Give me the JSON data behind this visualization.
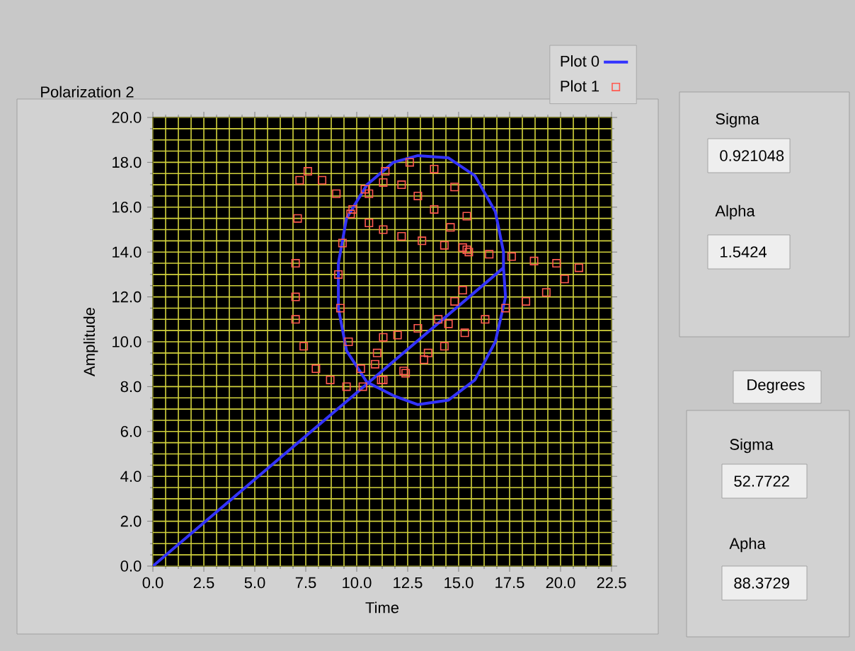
{
  "chart_data": {
    "type": "scatter",
    "title": "Polarization 2",
    "xlabel": "Time",
    "ylabel": "Amplitude",
    "xlim": [
      0,
      22.5
    ],
    "ylim": [
      0,
      20
    ],
    "xticks": [
      {
        "value": 0,
        "label": "0.0"
      },
      {
        "value": 2.5,
        "label": "2.5"
      },
      {
        "value": 5,
        "label": "5.0"
      },
      {
        "value": 7.5,
        "label": "7.5"
      },
      {
        "value": 10,
        "label": "10.0"
      },
      {
        "value": 12.5,
        "label": "12.5"
      },
      {
        "value": 15,
        "label": "15.0"
      },
      {
        "value": 17.5,
        "label": "17.5"
      },
      {
        "value": 20,
        "label": "20.0"
      },
      {
        "value": 22.5,
        "label": "22.5"
      },
      {
        "value": 0.625,
        "label": null
      },
      {
        "value": 1.25,
        "label": null
      },
      {
        "value": 1.875,
        "label": null
      },
      {
        "value": 3.125,
        "label": null
      },
      {
        "value": 3.75,
        "label": null
      },
      {
        "value": 4.375,
        "label": null
      },
      {
        "value": 5.625,
        "label": null
      },
      {
        "value": 6.25,
        "label": null
      },
      {
        "value": 6.875,
        "label": null
      },
      {
        "value": 8.125,
        "label": null
      },
      {
        "value": 8.75,
        "label": null
      },
      {
        "value": 9.375,
        "label": null
      },
      {
        "value": 10.625,
        "label": null
      },
      {
        "value": 11.25,
        "label": null
      },
      {
        "value": 11.875,
        "label": null
      },
      {
        "value": 13.125,
        "label": null
      },
      {
        "value": 13.75,
        "label": null
      },
      {
        "value": 14.375,
        "label": null
      },
      {
        "value": 15.625,
        "label": null
      },
      {
        "value": 16.25,
        "label": null
      },
      {
        "value": 16.875,
        "label": null
      },
      {
        "value": 18.125,
        "label": null
      },
      {
        "value": 18.75,
        "label": null
      },
      {
        "value": 19.375,
        "label": null
      },
      {
        "value": 20.625,
        "label": null
      },
      {
        "value": 21.25,
        "label": null
      },
      {
        "value": 21.875,
        "label": null
      }
    ],
    "yticks": [
      {
        "value": 0,
        "label": "0.0"
      },
      {
        "value": 2,
        "label": "2.0"
      },
      {
        "value": 4,
        "label": "4.0"
      },
      {
        "value": 6,
        "label": "6.0"
      },
      {
        "value": 8,
        "label": "8.0"
      },
      {
        "value": 10,
        "label": "10.0"
      },
      {
        "value": 12,
        "label": "12.0"
      },
      {
        "value": 14,
        "label": "14.0"
      },
      {
        "value": 16,
        "label": "16.0"
      },
      {
        "value": 18,
        "label": "18.0"
      },
      {
        "value": 20,
        "label": "20.0"
      },
      {
        "value": 0.5,
        "label": null
      },
      {
        "value": 1,
        "label": null
      },
      {
        "value": 1.5,
        "label": null
      },
      {
        "value": 2.5,
        "label": null
      },
      {
        "value": 3,
        "label": null
      },
      {
        "value": 3.5,
        "label": null
      },
      {
        "value": 4.5,
        "label": null
      },
      {
        "value": 5,
        "label": null
      },
      {
        "value": 5.5,
        "label": null
      },
      {
        "value": 6.5,
        "label": null
      },
      {
        "value": 7,
        "label": null
      },
      {
        "value": 7.5,
        "label": null
      },
      {
        "value": 8.5,
        "label": null
      },
      {
        "value": 9,
        "label": null
      },
      {
        "value": 9.5,
        "label": null
      },
      {
        "value": 10.5,
        "label": null
      },
      {
        "value": 11,
        "label": null
      },
      {
        "value": 11.5,
        "label": null
      },
      {
        "value": 12.5,
        "label": null
      },
      {
        "value": 13,
        "label": null
      },
      {
        "value": 13.5,
        "label": null
      },
      {
        "value": 14.5,
        "label": null
      },
      {
        "value": 15,
        "label": null
      },
      {
        "value": 15.5,
        "label": null
      },
      {
        "value": 16.5,
        "label": null
      },
      {
        "value": 17,
        "label": null
      },
      {
        "value": 17.5,
        "label": null
      },
      {
        "value": 18.5,
        "label": null
      },
      {
        "value": 19,
        "label": null
      },
      {
        "value": 19.5,
        "label": null
      }
    ],
    "grid": true,
    "legend": "top right",
    "series": [
      {
        "name": "Plot 0",
        "type": "line",
        "color": "#3333ff",
        "marker": "none",
        "line_style": "solid",
        "x": [
          0,
          17.2,
          17.3,
          16.8,
          15.8,
          14.5,
          13,
          11.8,
          10.5,
          9.5,
          9.1,
          9.1,
          9.5,
          10.5,
          11.8,
          13,
          14.5,
          15.8,
          16.8,
          17.2,
          17.2
        ],
        "values": [
          0,
          13.3,
          12,
          10,
          8.3,
          7.4,
          7.2,
          7.6,
          8.2,
          9.6,
          11.5,
          13.5,
          15.5,
          17,
          18,
          18.3,
          18.2,
          17.4,
          15.8,
          14,
          13.3
        ]
      },
      {
        "name": "Plot 1",
        "color": "#ff5a50",
        "marker": "square",
        "x": [
          20.9,
          19.8,
          18.7,
          17.6,
          16.5,
          15.4,
          14.3,
          13.2,
          12.2,
          11.3,
          10.6,
          9.8,
          9,
          8.3,
          7.6,
          7.2,
          7.1,
          7,
          7,
          7,
          7.4,
          8,
          8.7,
          9.5,
          10.3,
          11.3,
          12.3,
          13.3,
          14.3,
          15.3,
          16.3,
          17.3,
          18.3,
          19.3,
          20.2,
          9.1,
          9.2,
          9.6,
          10.2,
          11.2,
          12.4,
          13.5,
          14.5,
          15.2,
          15.5,
          15.4,
          14.8,
          13.8,
          12.6,
          11.4,
          10.4,
          9.7,
          9.3,
          10.6,
          11.3,
          12.2,
          13,
          13.8,
          14.6,
          15.2,
          14.8,
          14,
          13,
          12,
          11.3,
          11,
          10.9
        ],
        "values": [
          13.3,
          13.5,
          13.6,
          13.8,
          13.9,
          14.1,
          14.3,
          14.5,
          14.7,
          15,
          15.3,
          15.9,
          16.6,
          17.2,
          17.6,
          17.2,
          15.5,
          13.5,
          12,
          11,
          9.8,
          8.8,
          8.3,
          8,
          8,
          8.3,
          8.7,
          9.2,
          9.8,
          10.4,
          11,
          11.5,
          11.8,
          12.2,
          12.8,
          13,
          11.5,
          10,
          8.8,
          8.3,
          8.6,
          9.5,
          10.8,
          12.3,
          14,
          15.6,
          16.9,
          17.7,
          18,
          17.6,
          16.8,
          15.7,
          14.4,
          16.6,
          17.1,
          17,
          16.5,
          15.9,
          15.1,
          14.2,
          11.8,
          11,
          10.6,
          10.3,
          10.2,
          9.5,
          9
        ]
      }
    ],
    "annotations": [
      "Sigma",
      "0.921048",
      "Alpha",
      "1.5424",
      "Degrees",
      "Sigma",
      "52.7722",
      "Apha",
      "88.3729"
    ]
  }
}
